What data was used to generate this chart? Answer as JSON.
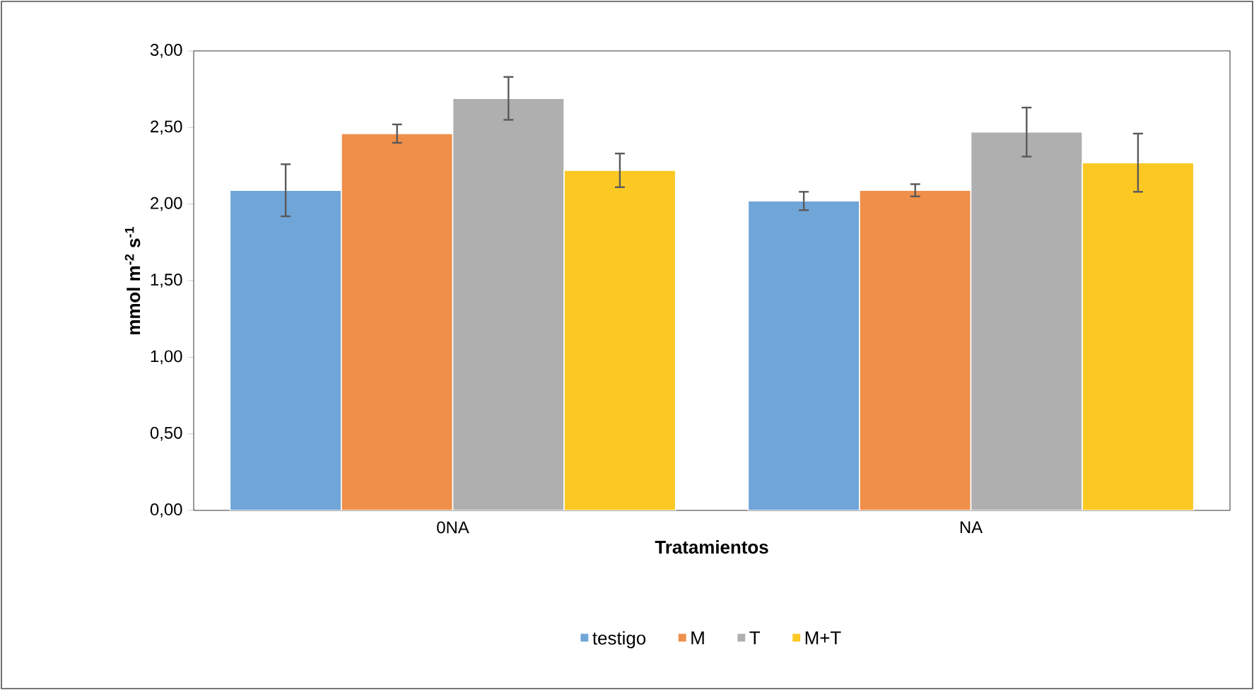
{
  "chart_data": {
    "type": "bar",
    "categories": [
      "0NA",
      "NA"
    ],
    "xlabel": "Tratamientos",
    "ylabel": "mmol m$^{-2}$ s$^{-1}$",
    "series": [
      {
        "name": "testigo",
        "color": "#70a5d8",
        "values": [
          2.09,
          2.02
        ],
        "errors": [
          0.17,
          0.06
        ]
      },
      {
        "name": "M",
        "color": "#ef8f4a",
        "values": [
          2.46,
          2.09
        ],
        "errors": [
          0.06,
          0.04
        ]
      },
      {
        "name": "T",
        "color": "#afafaf",
        "values": [
          2.69,
          2.47
        ],
        "errors": [
          0.14,
          0.16
        ]
      },
      {
        "name": "M+T",
        "color": "#fcc824",
        "values": [
          2.22,
          2.27
        ],
        "errors": [
          0.11,
          0.19
        ]
      }
    ],
    "ylim": [
      0,
      3
    ],
    "yticks": [
      {
        "value": 0,
        "label": "0,00"
      },
      {
        "value": 0.5,
        "label": "0,50"
      },
      {
        "value": 1,
        "label": "1,00"
      },
      {
        "value": 1.5,
        "label": "1,50"
      },
      {
        "value": 2,
        "label": "2,00"
      },
      {
        "value": 2.5,
        "label": "2,50"
      },
      {
        "value": 3,
        "label": "3,00"
      }
    ],
    "legend": "bottom",
    "grid": false
  }
}
